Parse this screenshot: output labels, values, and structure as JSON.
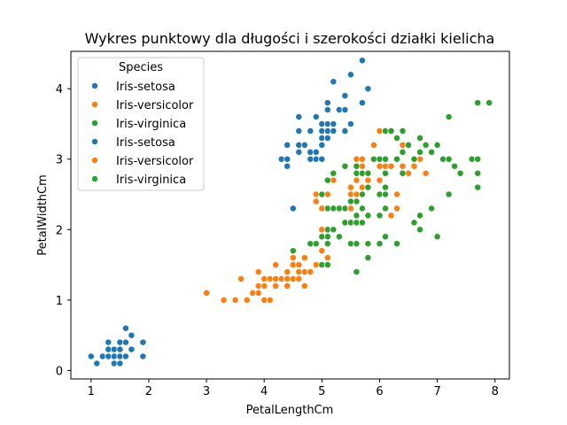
{
  "chart_data": {
    "type": "scatter",
    "title": "Wykres punktowy dla długości i szerokości działki kielicha",
    "xlabel": "PetalLengthCm",
    "ylabel": "PetalWidthCm",
    "xlim": [
      0.65,
      8.25
    ],
    "ylim": [
      -0.12,
      4.53
    ],
    "xticks": [
      "1",
      "2",
      "3",
      "4",
      "5",
      "6",
      "7",
      "8"
    ],
    "yticks": [
      "0",
      "1",
      "2",
      "3",
      "4"
    ],
    "grid": false,
    "legend": {
      "title": "Species",
      "placement": "top-left"
    },
    "colors": {
      "setosa": "#1f77b4",
      "versicolor": "#ff7f0e",
      "virginica": "#2ca02c"
    },
    "series": [
      {
        "name": "Iris-setosa",
        "color": "#1f77b4",
        "points": [
          [
            1.0,
            0.2
          ],
          [
            1.1,
            0.1
          ],
          [
            1.2,
            0.2
          ],
          [
            1.3,
            0.2
          ],
          [
            1.3,
            0.3
          ],
          [
            1.3,
            0.4
          ],
          [
            1.4,
            0.1
          ],
          [
            1.4,
            0.2
          ],
          [
            1.4,
            0.3
          ],
          [
            1.5,
            0.1
          ],
          [
            1.5,
            0.2
          ],
          [
            1.5,
            0.3
          ],
          [
            1.5,
            0.4
          ],
          [
            1.6,
            0.2
          ],
          [
            1.6,
            0.4
          ],
          [
            1.6,
            0.6
          ],
          [
            1.7,
            0.3
          ],
          [
            1.7,
            0.5
          ],
          [
            1.9,
            0.2
          ],
          [
            1.9,
            0.4
          ]
        ]
      },
      {
        "name": "Iris-versicolor",
        "color": "#ff7f0e",
        "points": [
          [
            3.0,
            1.1
          ],
          [
            3.3,
            1.0
          ],
          [
            3.5,
            1.0
          ],
          [
            3.6,
            1.3
          ],
          [
            3.7,
            1.0
          ],
          [
            3.8,
            1.1
          ],
          [
            3.9,
            1.1
          ],
          [
            3.9,
            1.2
          ],
          [
            3.9,
            1.4
          ],
          [
            4.0,
            1.0
          ],
          [
            4.0,
            1.2
          ],
          [
            4.0,
            1.3
          ],
          [
            4.1,
            1.0
          ],
          [
            4.1,
            1.3
          ],
          [
            4.2,
            1.2
          ],
          [
            4.2,
            1.3
          ],
          [
            4.2,
            1.5
          ],
          [
            4.3,
            1.3
          ],
          [
            4.4,
            1.2
          ],
          [
            4.4,
            1.3
          ],
          [
            4.4,
            1.4
          ],
          [
            4.5,
            1.3
          ],
          [
            4.5,
            1.5
          ],
          [
            4.5,
            1.6
          ],
          [
            4.6,
            1.3
          ],
          [
            4.6,
            1.4
          ],
          [
            4.6,
            1.5
          ],
          [
            4.7,
            1.2
          ],
          [
            4.7,
            1.4
          ],
          [
            4.7,
            1.6
          ],
          [
            4.8,
            1.4
          ],
          [
            4.8,
            1.8
          ],
          [
            4.9,
            1.5
          ],
          [
            5.0,
            1.7
          ],
          [
            5.1,
            1.6
          ]
        ]
      },
      {
        "name": "Iris-virginica",
        "color": "#2ca02c",
        "points": [
          [
            4.5,
            1.7
          ],
          [
            4.8,
            1.8
          ],
          [
            4.9,
            1.8
          ],
          [
            5.0,
            1.5
          ],
          [
            5.0,
            1.9
          ],
          [
            5.0,
            2.0
          ],
          [
            5.1,
            1.5
          ],
          [
            5.1,
            1.8
          ],
          [
            5.1,
            1.9
          ],
          [
            5.1,
            2.0
          ],
          [
            5.1,
            2.3
          ],
          [
            5.2,
            2.0
          ],
          [
            5.2,
            2.3
          ],
          [
            5.3,
            1.9
          ],
          [
            5.3,
            2.3
          ],
          [
            5.4,
            2.1
          ],
          [
            5.4,
            2.3
          ],
          [
            5.5,
            1.8
          ],
          [
            5.5,
            2.1
          ],
          [
            5.5,
            2.3
          ],
          [
            5.6,
            1.4
          ],
          [
            5.6,
            1.8
          ],
          [
            5.6,
            2.1
          ],
          [
            5.6,
            2.2
          ],
          [
            5.6,
            2.4
          ],
          [
            5.7,
            2.1
          ],
          [
            5.7,
            2.3
          ],
          [
            5.8,
            1.6
          ],
          [
            5.8,
            1.8
          ],
          [
            5.8,
            2.2
          ],
          [
            6.0,
            1.8
          ],
          [
            6.0,
            2.5
          ],
          [
            6.1,
            1.9
          ],
          [
            6.1,
            2.3
          ],
          [
            6.1,
            2.5
          ],
          [
            6.3,
            1.8
          ],
          [
            6.6,
            2.1
          ],
          [
            6.7,
            2.0
          ],
          [
            6.7,
            2.2
          ],
          [
            6.9,
            2.3
          ],
          [
            7.0,
            1.9
          ],
          [
            7.2,
            2.5
          ]
        ]
      },
      {
        "name": "Iris-setosa",
        "color": "#1f77b4",
        "points": [
          [
            4.3,
            3.0
          ],
          [
            4.4,
            2.9
          ],
          [
            4.4,
            3.0
          ],
          [
            4.4,
            3.2
          ],
          [
            4.5,
            2.3
          ],
          [
            4.6,
            3.1
          ],
          [
            4.6,
            3.2
          ],
          [
            4.6,
            3.4
          ],
          [
            4.6,
            3.6
          ],
          [
            4.7,
            3.2
          ],
          [
            4.8,
            3.0
          ],
          [
            4.8,
            3.1
          ],
          [
            4.8,
            3.4
          ],
          [
            4.9,
            3.0
          ],
          [
            4.9,
            3.1
          ],
          [
            4.9,
            3.6
          ],
          [
            5.0,
            3.0
          ],
          [
            5.0,
            3.2
          ],
          [
            5.0,
            3.3
          ],
          [
            5.0,
            3.4
          ],
          [
            5.0,
            3.5
          ],
          [
            5.1,
            3.3
          ],
          [
            5.1,
            3.4
          ],
          [
            5.1,
            3.5
          ],
          [
            5.1,
            3.7
          ],
          [
            5.1,
            3.8
          ],
          [
            5.2,
            3.4
          ],
          [
            5.2,
            3.5
          ],
          [
            5.2,
            4.1
          ],
          [
            5.3,
            3.7
          ],
          [
            5.4,
            3.4
          ],
          [
            5.4,
            3.7
          ],
          [
            5.4,
            3.9
          ],
          [
            5.5,
            3.5
          ],
          [
            5.5,
            4.2
          ],
          [
            5.7,
            3.8
          ],
          [
            5.7,
            4.4
          ],
          [
            5.8,
            4.0
          ]
        ]
      },
      {
        "name": "Iris-versicolor",
        "color": "#ff7f0e",
        "points": [
          [
            4.9,
            2.4
          ],
          [
            4.9,
            2.5
          ],
          [
            5.0,
            2.0
          ],
          [
            5.0,
            2.3
          ],
          [
            5.1,
            2.5
          ],
          [
            5.2,
            2.7
          ],
          [
            5.5,
            2.3
          ],
          [
            5.5,
            2.4
          ],
          [
            5.5,
            2.5
          ],
          [
            5.5,
            2.6
          ],
          [
            5.6,
            2.5
          ],
          [
            5.6,
            2.7
          ],
          [
            5.6,
            2.9
          ],
          [
            5.6,
            3.0
          ],
          [
            5.7,
            2.6
          ],
          [
            5.7,
            2.8
          ],
          [
            5.7,
            2.9
          ],
          [
            5.7,
            3.0
          ],
          [
            5.8,
            2.6
          ],
          [
            5.8,
            2.7
          ],
          [
            5.9,
            3.0
          ],
          [
            5.9,
            3.2
          ],
          [
            6.0,
            2.2
          ],
          [
            6.0,
            2.7
          ],
          [
            6.0,
            2.9
          ],
          [
            6.0,
            3.4
          ],
          [
            6.1,
            2.8
          ],
          [
            6.1,
            2.9
          ],
          [
            6.1,
            3.0
          ],
          [
            6.2,
            2.2
          ],
          [
            6.2,
            2.9
          ],
          [
            6.3,
            2.3
          ],
          [
            6.3,
            2.5
          ],
          [
            6.3,
            3.3
          ],
          [
            6.4,
            2.9
          ],
          [
            6.4,
            3.2
          ],
          [
            6.5,
            2.8
          ],
          [
            6.6,
            2.9
          ],
          [
            6.6,
            3.0
          ],
          [
            6.7,
            3.0
          ],
          [
            6.7,
            3.1
          ],
          [
            6.8,
            2.8
          ],
          [
            6.9,
            3.1
          ],
          [
            7.0,
            3.2
          ]
        ]
      },
      {
        "name": "Iris-virginica",
        "color": "#2ca02c",
        "points": [
          [
            5.0,
            2.5
          ],
          [
            5.1,
            2.7
          ],
          [
            5.2,
            2.8
          ],
          [
            5.4,
            2.9
          ],
          [
            5.5,
            2.4
          ],
          [
            5.6,
            2.8
          ],
          [
            5.6,
            2.9
          ],
          [
            5.7,
            2.5
          ],
          [
            5.7,
            2.8
          ],
          [
            5.8,
            2.6
          ],
          [
            5.8,
            2.8
          ],
          [
            5.9,
            3.0
          ],
          [
            6.0,
            3.0
          ],
          [
            6.0,
            2.2
          ],
          [
            6.1,
            2.6
          ],
          [
            6.1,
            2.8
          ],
          [
            6.1,
            3.0
          ],
          [
            6.1,
            3.4
          ],
          [
            6.3,
            3.0
          ],
          [
            6.4,
            2.8
          ],
          [
            6.4,
            3.1
          ],
          [
            6.4,
            3.4
          ],
          [
            6.5,
            3.2
          ],
          [
            6.6,
            3.0
          ],
          [
            6.7,
            3.3
          ],
          [
            6.7,
            3.1
          ],
          [
            6.8,
            3.2
          ],
          [
            6.9,
            3.1
          ],
          [
            7.0,
            3.2
          ],
          [
            7.1,
            3.0
          ],
          [
            7.2,
            3.6
          ],
          [
            7.2,
            3.0
          ],
          [
            7.3,
            2.9
          ],
          [
            7.4,
            2.8
          ],
          [
            7.6,
            3.0
          ],
          [
            7.7,
            2.6
          ],
          [
            7.7,
            2.8
          ],
          [
            7.7,
            3.0
          ],
          [
            7.7,
            3.8
          ],
          [
            7.9,
            3.8
          ],
          [
            6.2,
            3.4
          ],
          [
            6.3,
            3.3
          ]
        ]
      }
    ]
  }
}
